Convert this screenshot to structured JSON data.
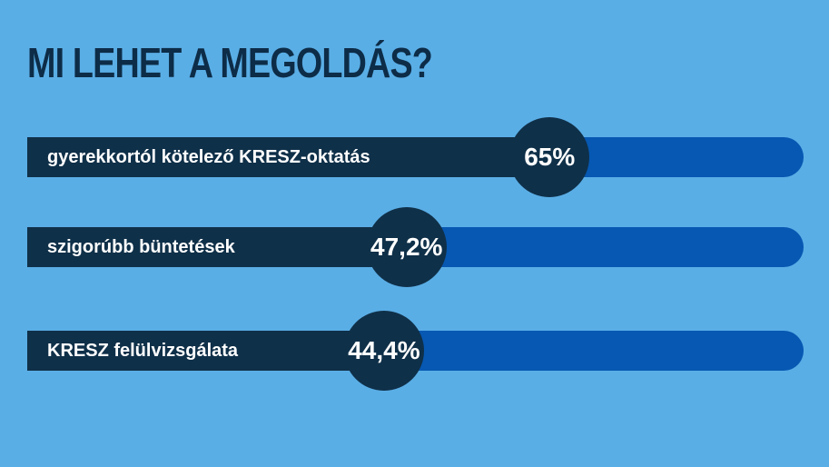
{
  "title": "MI LEHET A MEGOLDÁS?",
  "colors": {
    "background": "#5aaee6",
    "track": "#0658b2",
    "fill": "#0f3049",
    "title": "#0d2c47",
    "text": "#ffffff"
  },
  "chart_data": {
    "type": "bar",
    "orientation": "horizontal",
    "title": "MI LEHET A MEGOLDÁS?",
    "categories": [
      "gyerekkortól kötelező KRESZ-oktatás",
      "szigorúbb büntetések",
      "KRESZ felülvizsgálata"
    ],
    "values": [
      65,
      47.2,
      44.4
    ],
    "value_labels": [
      "65%",
      "47,2%",
      "44,4%"
    ],
    "unit": "%",
    "xlim": [
      0,
      100
    ],
    "grid": false,
    "legend": "none"
  }
}
